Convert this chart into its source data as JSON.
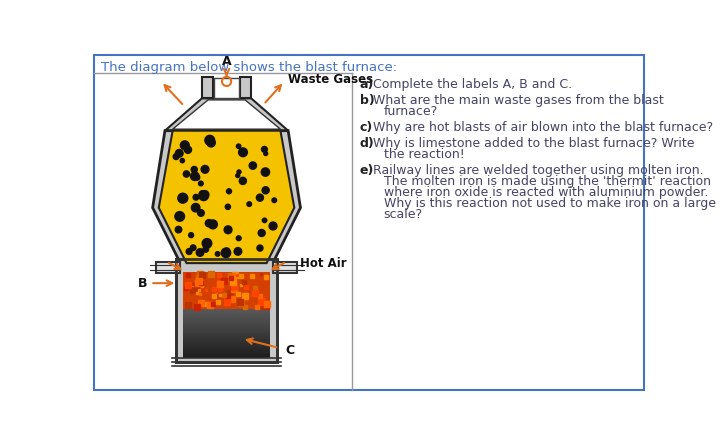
{
  "title": "The diagram below shows the blast furnace:",
  "title_color": "#4472c4",
  "title_fontsize": 9.5,
  "bg_color": "#ffffff",
  "border_color": "#4472c4",
  "furnace_fill_color": "#f5c200",
  "ore_dot_color": "#111111",
  "arrow_color": "#e07020",
  "label_color": "#111111",
  "hot_air_label": "Hot Air",
  "waste_gases_label": "Waste Gases",
  "label_A": "A",
  "label_B": "B",
  "label_C": "C",
  "questions": [
    {
      "letter": "a",
      "bold": "a)",
      "text": "Complete the labels A, B and C."
    },
    {
      "letter": "b",
      "bold": "b)",
      "text": "What are the main waste gases from the blast\nfurnace?"
    },
    {
      "letter": "c",
      "bold": "c)",
      "text": "Why are hot blasts of air blown into the blast furnace?"
    },
    {
      "letter": "d",
      "bold": "d)",
      "text": "Why is limestone added to the blast furnace? Write\nthe reaction!"
    },
    {
      "letter": "e",
      "bold": "e)",
      "text": "Railway lines are welded together using molten iron.\nThe molten iron is made using the 'thermit' reaction\nwhere iron oxide is reacted with aluminium powder.\nWhy is this reaction not used to make iron on a large\nscale?"
    }
  ]
}
